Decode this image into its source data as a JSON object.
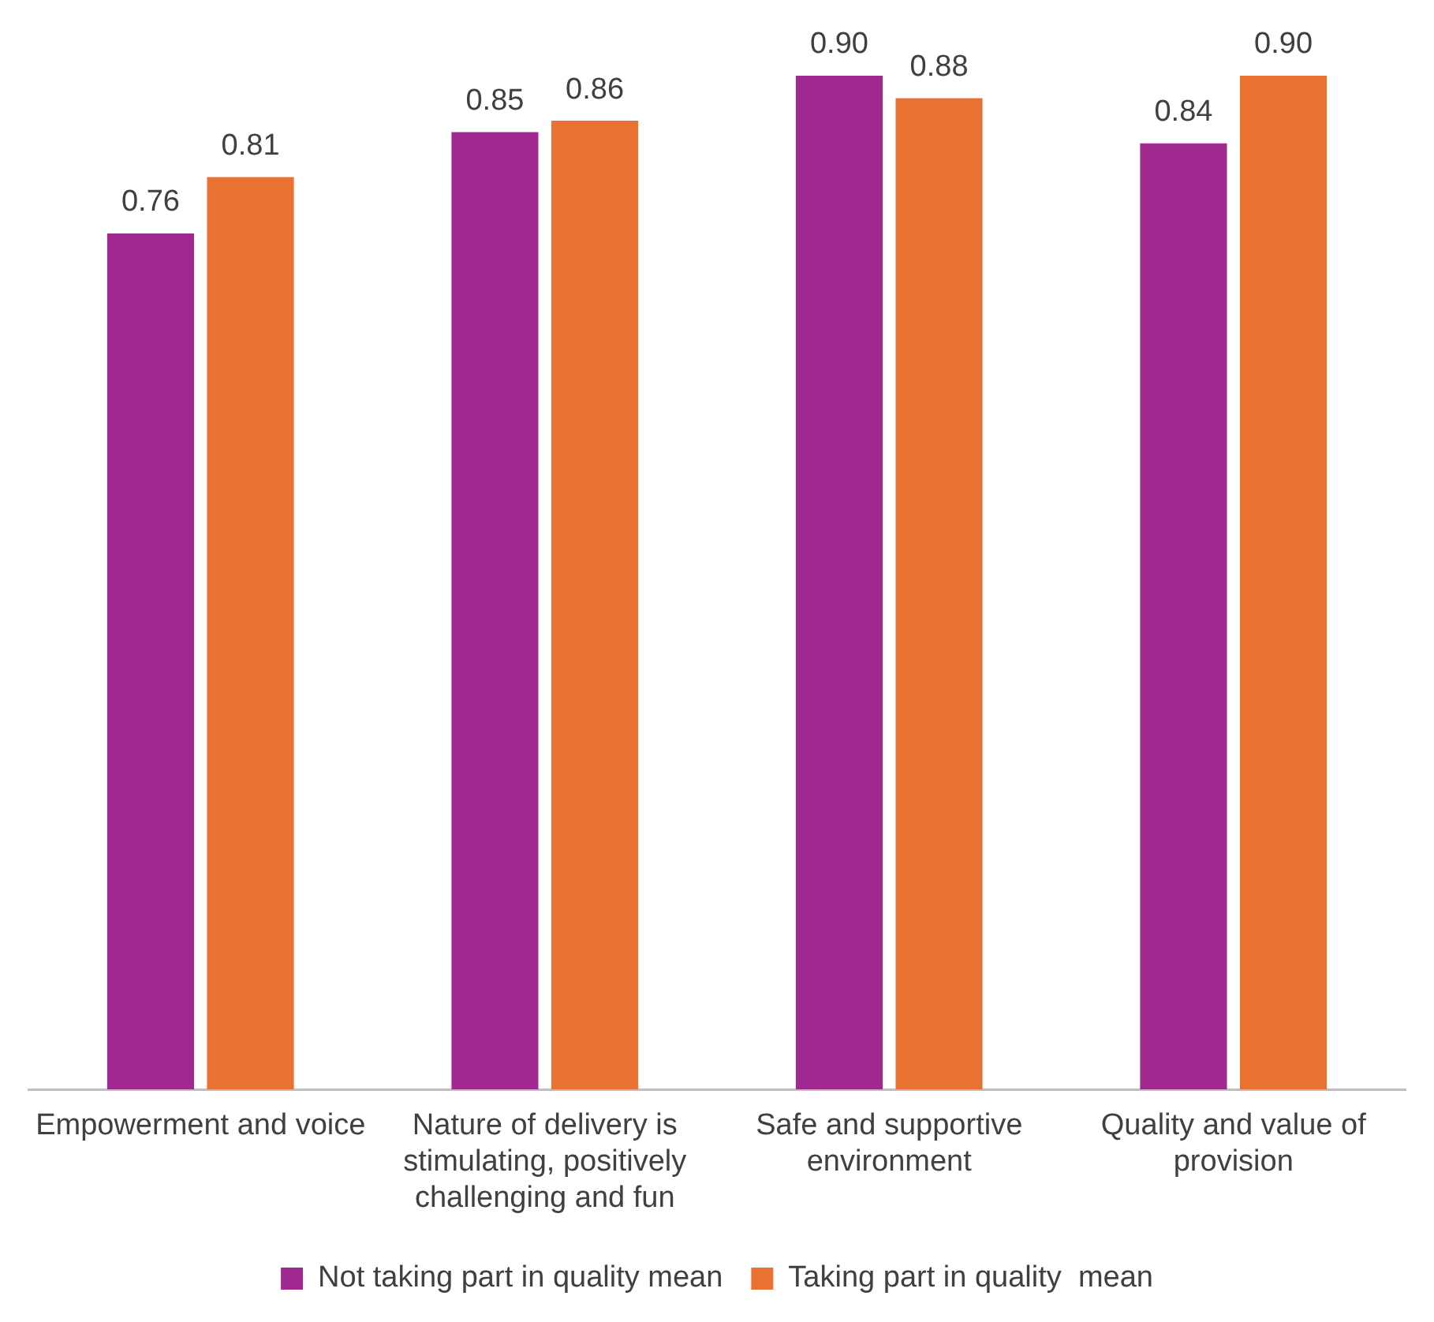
{
  "chart_data": {
    "type": "bar",
    "categories": [
      "Empowerment and voice",
      "Nature of delivery is stimulating, positively challenging and fun",
      "Safe and supportive environment",
      "Quality and value of provision"
    ],
    "series": [
      {
        "name": "Not taking part in quality mean",
        "color": "#a0298f",
        "values": [
          0.76,
          0.85,
          0.9,
          0.84
        ],
        "value_labels": [
          "0.76",
          "0.85",
          "0.90",
          "0.84"
        ]
      },
      {
        "name": "Taking part in quality  mean",
        "color": "#e97132",
        "values": [
          0.81,
          0.86,
          0.88,
          0.9
        ],
        "value_labels": [
          "0.81",
          "0.86",
          "0.88",
          "0.90"
        ]
      }
    ],
    "legend": "bottom",
    "grid": false,
    "tick_labels": "x"
  }
}
